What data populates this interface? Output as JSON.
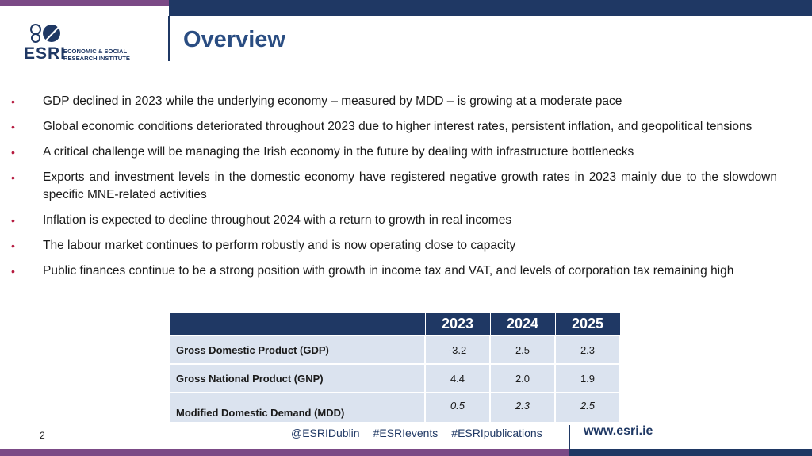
{
  "logo": {
    "name": "ESRI",
    "line1": "ECONOMIC & SOCIAL",
    "line2": "RESEARCH INSTITUTE"
  },
  "title": "Overview",
  "bullets": [
    "GDP declined in 2023 while the underlying economy – measured by MDD – is growing at a moderate pace",
    "Global economic conditions deteriorated throughout 2023 due to higher interest rates, persistent inflation, and geopolitical tensions",
    "A critical challenge will be managing the Irish economy in the future by dealing with infrastructure bottlenecks",
    "Exports and investment levels in the domestic economy have registered negative growth rates in 2023 mainly due to the slowdown specific MNE-related activities",
    "Inflation is expected to decline throughout 2024 with a return to growth in real incomes",
    "The labour market continues to perform robustly and is now operating close to capacity",
    "Public finances continue to be a strong position with growth in income tax and VAT, and levels of corporation tax remaining high"
  ],
  "table": {
    "years": [
      "2023",
      "2024",
      "2025"
    ],
    "rows": [
      {
        "label": "Gross Domestic Product (GDP)",
        "values": [
          "-3.2",
          "2.5",
          "2.3"
        ]
      },
      {
        "label": "Gross National Product (GNP)",
        "values": [
          "4.4",
          "2.0",
          "1.9"
        ]
      },
      {
        "label": "Modified Domestic Demand (MDD)",
        "values": [
          "0.5",
          "2.3",
          "2.5"
        ]
      }
    ]
  },
  "footer": {
    "page_number": "2",
    "tags": [
      "@ESRIDublin",
      "#ESRIevents",
      "#ESRIpublications"
    ],
    "url": "www.esri.ie"
  },
  "colors": {
    "navy": "#1f3864",
    "purple": "#7b4a86",
    "bullet_red": "#b5193e",
    "table_cell": "#dbe3ef"
  }
}
